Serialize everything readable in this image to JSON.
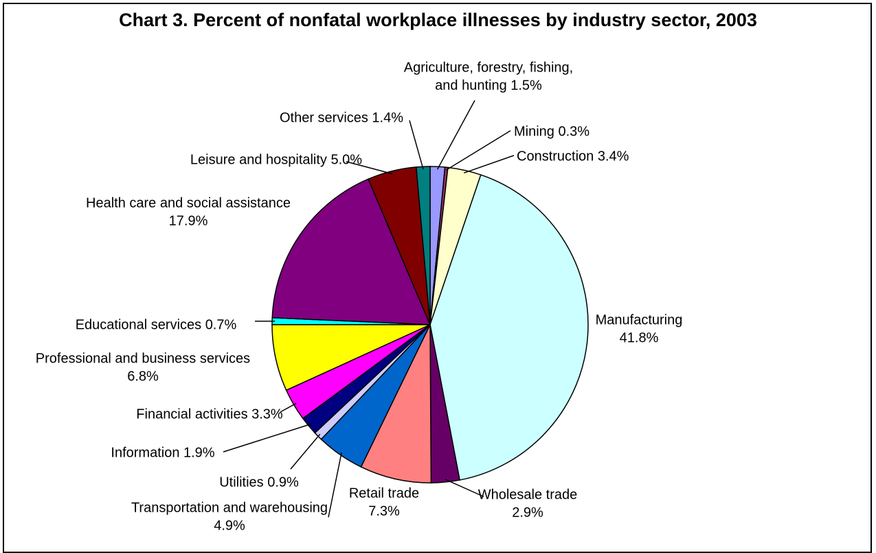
{
  "chart_data": {
    "type": "pie",
    "title": "Chart 3.  Percent of nonfatal workplace illnesses by industry sector, 2003",
    "unit": "percent",
    "slices": [
      {
        "label": [
          "Agriculture, forestry, fishing,",
          "and hunting 1.5%"
        ],
        "value": 1.5,
        "color": "#9999ff"
      },
      {
        "label": [
          "Mining 0.3%"
        ],
        "value": 0.3,
        "color": "#993366"
      },
      {
        "label": [
          "Construction 3.4%"
        ],
        "value": 3.4,
        "color": "#ffffcc"
      },
      {
        "label": [
          "Manufacturing",
          "41.8%"
        ],
        "value": 41.8,
        "color": "#ccffff"
      },
      {
        "label": [
          "Wholesale trade",
          "2.9%"
        ],
        "value": 2.9,
        "color": "#660066"
      },
      {
        "label": [
          "Retail trade",
          "7.3%"
        ],
        "value": 7.3,
        "color": "#ff8080"
      },
      {
        "label": [
          "Transportation and warehousing",
          "4.9%"
        ],
        "value": 4.9,
        "color": "#0066cc"
      },
      {
        "label": [
          "Utilities 0.9%"
        ],
        "value": 0.9,
        "color": "#ccccff"
      },
      {
        "label": [
          "Information 1.9%"
        ],
        "value": 1.9,
        "color": "#000080"
      },
      {
        "label": [
          "Financial activities 3.3%"
        ],
        "value": 3.3,
        "color": "#ff00ff"
      },
      {
        "label": [
          "Professional and business services",
          "6.8%"
        ],
        "value": 6.8,
        "color": "#ffff00"
      },
      {
        "label": [
          "Educational services 0.7%"
        ],
        "value": 0.7,
        "color": "#00ffff"
      },
      {
        "label": [
          "Health care and social assistance",
          "17.9%"
        ],
        "value": 17.9,
        "color": "#800080"
      },
      {
        "label": [
          "Leisure and hospitality 5.0%"
        ],
        "value": 5.0,
        "color": "#800000"
      },
      {
        "label": [
          "Other services 1.4%"
        ],
        "value": 1.4,
        "color": "#008080"
      }
    ]
  }
}
